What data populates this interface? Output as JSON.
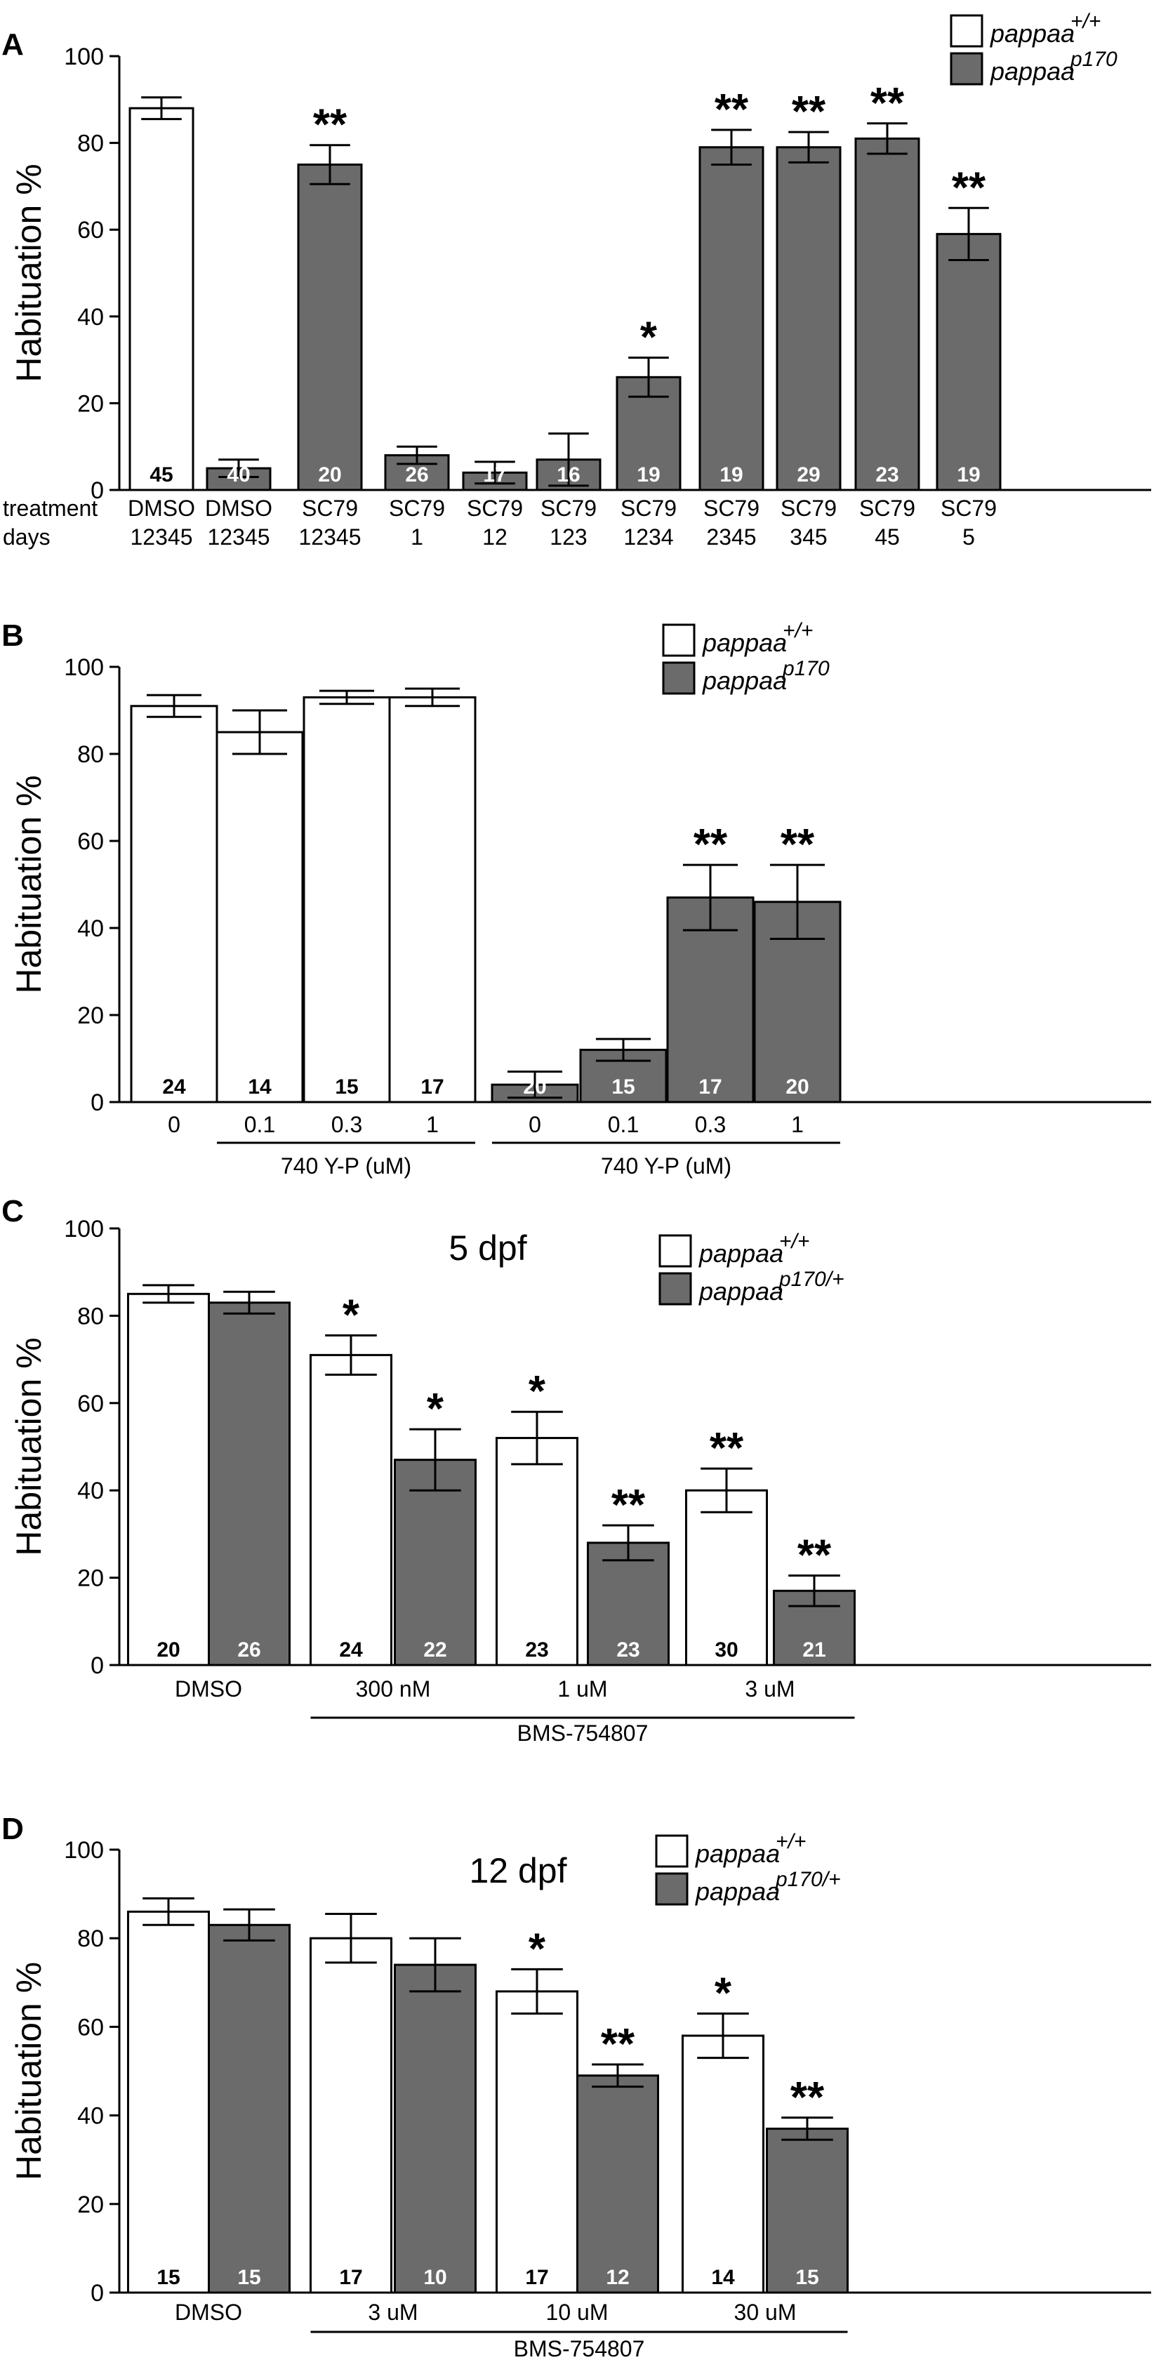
{
  "colors": {
    "wt": "#ffffff",
    "mut": "#6b6b6b",
    "axis": "#000000",
    "nWhite": "#ffffff",
    "nBlack": "#000000"
  },
  "chart_data": [
    {
      "panel": "A",
      "type": "bar",
      "ylabel": "Habituation %",
      "ylim": [
        0,
        100
      ],
      "yticks": [
        "0",
        "20",
        "40",
        "60",
        "80",
        "100"
      ],
      "xlabel_prefix": [
        "treatment",
        "days"
      ],
      "legend": [
        "pappaa",
        "+/+",
        "pappaa",
        "p170"
      ],
      "bars": [
        {
          "group": "wt",
          "cat": [
            "DMSO",
            "12345"
          ],
          "value": 88,
          "err": 2.5,
          "n": "45",
          "sig": ""
        },
        {
          "group": "mut",
          "cat": [
            "DMSO",
            "12345"
          ],
          "value": 5,
          "err": 2,
          "n": "40",
          "sig": ""
        },
        {
          "group": "mut",
          "cat": [
            "SC79",
            "12345"
          ],
          "value": 75,
          "err": 4.5,
          "n": "20",
          "sig": "**"
        },
        {
          "group": "mut",
          "cat": [
            "SC79",
            "1"
          ],
          "value": 8,
          "err": 2,
          "n": "26",
          "sig": ""
        },
        {
          "group": "mut",
          "cat": [
            "SC79",
            "12"
          ],
          "value": 4,
          "err": 2.5,
          "n": "17",
          "sig": ""
        },
        {
          "group": "mut",
          "cat": [
            "SC79",
            "123"
          ],
          "value": 7,
          "err": 6,
          "n": "16",
          "sig": ""
        },
        {
          "group": "mut",
          "cat": [
            "SC79",
            "1234"
          ],
          "value": 26,
          "err": 4.5,
          "n": "19",
          "sig": "*"
        },
        {
          "group": "mut",
          "cat": [
            "SC79",
            "2345"
          ],
          "value": 79,
          "err": 4,
          "n": "19",
          "sig": "**"
        },
        {
          "group": "mut",
          "cat": [
            "SC79",
            "345"
          ],
          "value": 79,
          "err": 3.5,
          "n": "29",
          "sig": "**"
        },
        {
          "group": "mut",
          "cat": [
            "SC79",
            "45"
          ],
          "value": 81,
          "err": 3.5,
          "n": "23",
          "sig": "**"
        },
        {
          "group": "mut",
          "cat": [
            "SC79",
            "5"
          ],
          "value": 59,
          "err": 6,
          "n": "19",
          "sig": "**"
        }
      ],
      "subtitle": "",
      "brackets": []
    },
    {
      "panel": "B",
      "type": "bar",
      "ylabel": "Habituation %",
      "ylim": [
        0,
        100
      ],
      "yticks": [
        "0",
        "20",
        "40",
        "60",
        "80",
        "100"
      ],
      "xlabel_prefix": [],
      "legend": [
        "pappaa",
        "+/+",
        "pappaa",
        "p170"
      ],
      "bars": [
        {
          "group": "wt",
          "cat": [
            "0"
          ],
          "value": 91,
          "err": 2.5,
          "n": "24",
          "sig": ""
        },
        {
          "group": "wt",
          "cat": [
            "0.1"
          ],
          "value": 85,
          "err": 5,
          "n": "14",
          "sig": ""
        },
        {
          "group": "wt",
          "cat": [
            "0.3"
          ],
          "value": 93,
          "err": 1.5,
          "n": "15",
          "sig": ""
        },
        {
          "group": "wt",
          "cat": [
            "1"
          ],
          "value": 93,
          "err": 2,
          "n": "17",
          "sig": ""
        },
        {
          "group": "mut",
          "cat": [
            "0"
          ],
          "value": 4,
          "err": 3,
          "n": "20",
          "sig": ""
        },
        {
          "group": "mut",
          "cat": [
            "0.1"
          ],
          "value": 12,
          "err": 2.5,
          "n": "15",
          "sig": ""
        },
        {
          "group": "mut",
          "cat": [
            "0.3"
          ],
          "value": 47,
          "err": 7.5,
          "n": "17",
          "sig": "**"
        },
        {
          "group": "mut",
          "cat": [
            "1"
          ],
          "value": 46,
          "err": 8.5,
          "n": "20",
          "sig": "**"
        }
      ],
      "subtitle": "",
      "brackets": [
        {
          "label": "740 Y-P (uM)",
          "from": 1,
          "to": 3
        },
        {
          "label": "740 Y-P (uM)",
          "from": 4,
          "to": 7
        }
      ]
    },
    {
      "panel": "C",
      "type": "bar",
      "ylabel": "Habituation %",
      "ylim": [
        0,
        100
      ],
      "yticks": [
        "0",
        "20",
        "40",
        "60",
        "80",
        "100"
      ],
      "xlabel_prefix": [],
      "legend": [
        "pappaa",
        "+/+",
        "pappaa",
        "p170/+"
      ],
      "subtitle": "5 dpf",
      "categories": [
        "DMSO",
        "300 nM",
        "1 uM",
        "3 uM"
      ],
      "bars": [
        {
          "group": "wt",
          "cat": [
            "DMSO"
          ],
          "value": 85,
          "err": 2,
          "n": "20",
          "sig": ""
        },
        {
          "group": "mut",
          "cat": [
            "DMSO"
          ],
          "value": 83,
          "err": 2.5,
          "n": "26",
          "sig": ""
        },
        {
          "group": "wt",
          "cat": [
            "300 nM"
          ],
          "value": 71,
          "err": 4.5,
          "n": "24",
          "sig": "*"
        },
        {
          "group": "mut",
          "cat": [
            "300 nM"
          ],
          "value": 47,
          "err": 7,
          "n": "22",
          "sig": "*"
        },
        {
          "group": "wt",
          "cat": [
            "1 uM"
          ],
          "value": 52,
          "err": 6,
          "n": "23",
          "sig": "*"
        },
        {
          "group": "mut",
          "cat": [
            "1 uM"
          ],
          "value": 28,
          "err": 4,
          "n": "23",
          "sig": "**"
        },
        {
          "group": "wt",
          "cat": [
            "3 uM"
          ],
          "value": 40,
          "err": 5,
          "n": "30",
          "sig": "**"
        },
        {
          "group": "mut",
          "cat": [
            "3 uM"
          ],
          "value": 17,
          "err": 3.5,
          "n": "21",
          "sig": "**"
        }
      ],
      "brackets": [
        {
          "label": "BMS-754807",
          "from": 2,
          "to": 7
        }
      ]
    },
    {
      "panel": "D",
      "type": "bar",
      "ylabel": "Habituation %",
      "ylim": [
        0,
        100
      ],
      "yticks": [
        "0",
        "20",
        "40",
        "60",
        "80",
        "100"
      ],
      "xlabel_prefix": [],
      "legend": [
        "pappaa",
        "+/+",
        "pappaa",
        "p170/+"
      ],
      "subtitle": "12 dpf",
      "categories": [
        "DMSO",
        "3 uM",
        "10 uM",
        "30 uM"
      ],
      "bars": [
        {
          "group": "wt",
          "cat": [
            "DMSO"
          ],
          "value": 86,
          "err": 3,
          "n": "15",
          "sig": ""
        },
        {
          "group": "mut",
          "cat": [
            "DMSO"
          ],
          "value": 83,
          "err": 3.5,
          "n": "15",
          "sig": ""
        },
        {
          "group": "wt",
          "cat": [
            "3 uM"
          ],
          "value": 80,
          "err": 5.5,
          "n": "17",
          "sig": ""
        },
        {
          "group": "mut",
          "cat": [
            "3 uM"
          ],
          "value": 74,
          "err": 6,
          "n": "10",
          "sig": ""
        },
        {
          "group": "wt",
          "cat": [
            "10 uM"
          ],
          "value": 68,
          "err": 5,
          "n": "17",
          "sig": "*"
        },
        {
          "group": "mut",
          "cat": [
            "10 uM"
          ],
          "value": 49,
          "err": 2.5,
          "n": "12",
          "sig": "**"
        },
        {
          "group": "wt",
          "cat": [
            "30 uM"
          ],
          "value": 58,
          "err": 5,
          "n": "14",
          "sig": "*"
        },
        {
          "group": "mut",
          "cat": [
            "30 uM"
          ],
          "value": 37,
          "err": 2.5,
          "n": "15",
          "sig": "**"
        }
      ],
      "brackets": [
        {
          "label": "BMS-754807",
          "from": 2,
          "to": 7
        }
      ]
    }
  ]
}
